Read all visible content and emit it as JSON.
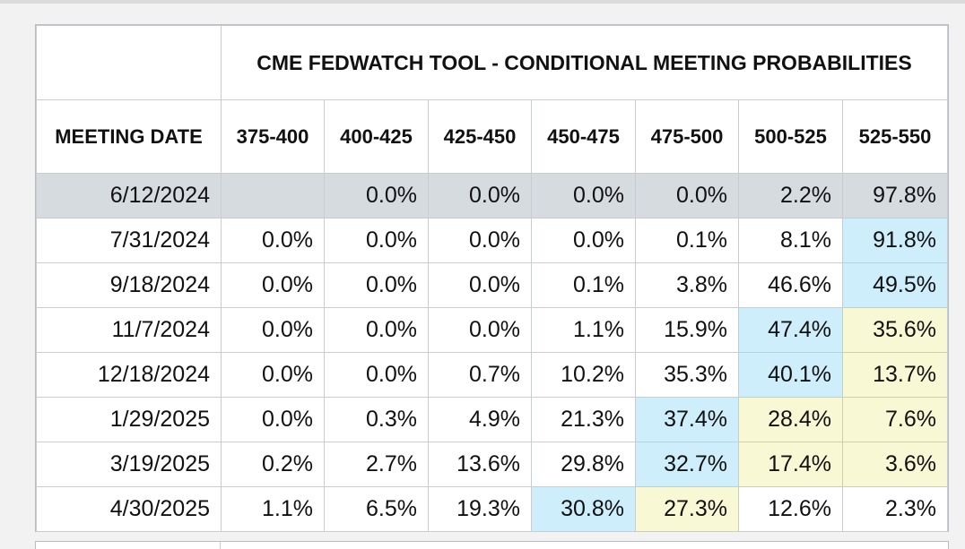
{
  "chart_data": {
    "type": "table",
    "title": "CME FEDWATCH TOOL - CONDITIONAL MEETING PROBABILITIES",
    "row_header": "MEETING DATE",
    "columns": [
      "375-400",
      "400-425",
      "425-450",
      "450-475",
      "475-500",
      "500-525",
      "525-550"
    ],
    "rows": [
      {
        "date": "6/12/2024",
        "values": [
          "",
          "0.0%",
          "0.0%",
          "0.0%",
          "0.0%",
          "2.2%",
          "97.8%"
        ],
        "highlight": [
          "",
          "",
          "",
          "",
          "",
          "",
          ""
        ],
        "current": true
      },
      {
        "date": "7/31/2024",
        "values": [
          "0.0%",
          "0.0%",
          "0.0%",
          "0.0%",
          "0.1%",
          "8.1%",
          "91.8%"
        ],
        "highlight": [
          "",
          "",
          "",
          "",
          "",
          "",
          "blue"
        ],
        "current": false
      },
      {
        "date": "9/18/2024",
        "values": [
          "0.0%",
          "0.0%",
          "0.0%",
          "0.1%",
          "3.8%",
          "46.6%",
          "49.5%"
        ],
        "highlight": [
          "",
          "",
          "",
          "",
          "",
          "",
          "blue"
        ],
        "current": false
      },
      {
        "date": "11/7/2024",
        "values": [
          "0.0%",
          "0.0%",
          "0.0%",
          "1.1%",
          "15.9%",
          "47.4%",
          "35.6%"
        ],
        "highlight": [
          "",
          "",
          "",
          "",
          "",
          "blue",
          "yellow"
        ],
        "current": false
      },
      {
        "date": "12/18/2024",
        "values": [
          "0.0%",
          "0.0%",
          "0.7%",
          "10.2%",
          "35.3%",
          "40.1%",
          "13.7%"
        ],
        "highlight": [
          "",
          "",
          "",
          "",
          "",
          "blue",
          "yellow"
        ],
        "current": false
      },
      {
        "date": "1/29/2025",
        "values": [
          "0.0%",
          "0.3%",
          "4.9%",
          "21.3%",
          "37.4%",
          "28.4%",
          "7.6%"
        ],
        "highlight": [
          "",
          "",
          "",
          "",
          "blue",
          "yellow",
          "yellow"
        ],
        "current": false
      },
      {
        "date": "3/19/2025",
        "values": [
          "0.2%",
          "2.7%",
          "13.6%",
          "29.8%",
          "32.7%",
          "17.4%",
          "3.6%"
        ],
        "highlight": [
          "",
          "",
          "",
          "",
          "blue",
          "yellow",
          "yellow"
        ],
        "current": false
      },
      {
        "date": "4/30/2025",
        "values": [
          "1.1%",
          "6.5%",
          "19.3%",
          "30.8%",
          "27.3%",
          "12.6%",
          "2.3%"
        ],
        "highlight": [
          "",
          "",
          "",
          "blue",
          "yellow",
          "",
          ""
        ],
        "current": false
      }
    ],
    "colors": {
      "current_row": "#d6dbe0",
      "highlight_blue": "#cdeefa",
      "highlight_yellow": "#f9f8d4"
    }
  }
}
